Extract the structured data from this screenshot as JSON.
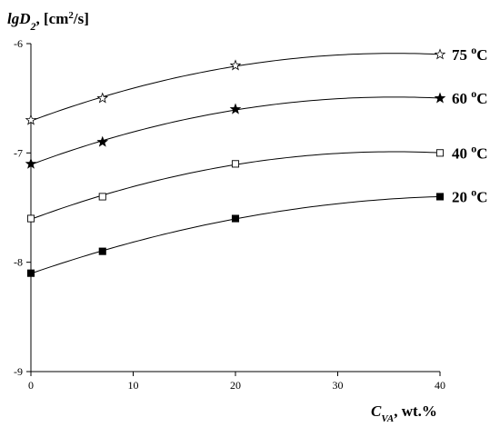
{
  "chart_data": {
    "type": "line",
    "ylabel": {
      "base": "lgD",
      "sub": "2",
      "unit_pre": ", [cm",
      "sup": "2",
      "unit_post": "/s]"
    },
    "xlabel": {
      "base": "C",
      "sub": "VA",
      "unit": ", wt.%"
    },
    "xlim": [
      0,
      40
    ],
    "ylim": [
      -9,
      -6
    ],
    "x_ticks": [
      0,
      10,
      20,
      30,
      40
    ],
    "x_tick_labels": [
      "0",
      "10",
      "20",
      "30",
      "40"
    ],
    "y_ticks": [
      -6,
      -7,
      -8,
      -9
    ],
    "y_tick_labels": [
      "-6",
      "-7",
      "-8",
      "-9"
    ],
    "grid": false,
    "x": [
      0,
      7,
      20,
      40
    ],
    "series": [
      {
        "name": "75 °C",
        "label": {
          "num": "75 ",
          "sup": "o",
          "unit": "C"
        },
        "marker": "star-open",
        "values": [
          -6.7,
          -6.5,
          -6.2,
          -6.1
        ]
      },
      {
        "name": "60 °C",
        "label": {
          "num": "60 ",
          "sup": "o",
          "unit": "C"
        },
        "marker": "star-filled",
        "values": [
          -7.1,
          -6.9,
          -6.6,
          -6.5
        ]
      },
      {
        "name": "40 °C",
        "label": {
          "num": "40 ",
          "sup": "o",
          "unit": "C"
        },
        "marker": "square-open",
        "values": [
          -7.6,
          -7.4,
          -7.1,
          -7.0
        ]
      },
      {
        "name": "20 °C",
        "label": {
          "num": "20 ",
          "sup": "o",
          "unit": "C"
        },
        "marker": "square-filled",
        "values": [
          -8.1,
          -7.9,
          -7.6,
          -7.4
        ]
      }
    ]
  }
}
